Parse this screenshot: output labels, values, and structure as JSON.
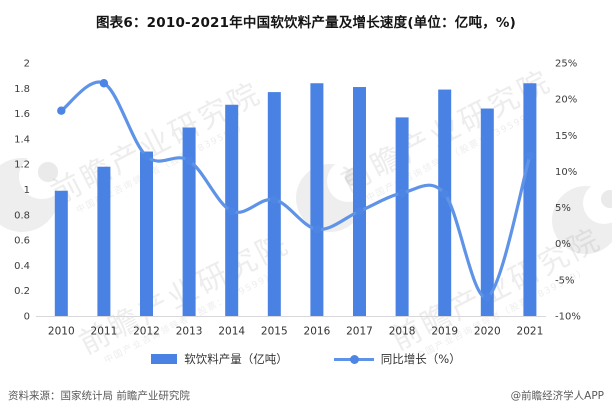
{
  "title": "图表6：2010-2021年中国软饮料产量及增长速度(单位：亿吨，%)",
  "legend": {
    "items": [
      {
        "label": "软饮料产量（亿吨）",
        "type": "bar"
      },
      {
        "label": "同比增长（%）",
        "type": "line"
      }
    ]
  },
  "footer": {
    "source": "资料来源：国家统计局 前瞻产业研究院",
    "credit": "@前瞻经济学人APP"
  },
  "watermark": {
    "brand": "前瞻产业研究院",
    "sub": "中国产业咨询领导者（股票：839599）"
  },
  "colors": {
    "bar": "#4982E2",
    "line": "#5E93E8",
    "marker": "#4C85E4",
    "axis_line": "#D8D8D8",
    "tick_text": "#3C3C3C",
    "xlabel_text": "#333333",
    "title_text": "#141414",
    "footer_text": "#5A5A5A",
    "watermark": "#999999"
  },
  "chart_data": {
    "type": "bar+line",
    "title": "图表6：2010-2021年中国软饮料产量及增长速度(单位：亿吨，%)",
    "categories": [
      "2010",
      "2011",
      "2012",
      "2013",
      "2014",
      "2015",
      "2016",
      "2017",
      "2018",
      "2019",
      "2020",
      "2021"
    ],
    "series": [
      {
        "name": "软饮料产量（亿吨）",
        "type": "bar",
        "axis": "left",
        "values": [
          0.99,
          1.18,
          1.3,
          1.49,
          1.67,
          1.77,
          1.84,
          1.81,
          1.57,
          1.79,
          1.64,
          1.84
        ]
      },
      {
        "name": "同比增长（%）",
        "type": "line",
        "axis": "right",
        "values": [
          18.4,
          22.2,
          12.1,
          11.5,
          4.5,
          6.1,
          2.0,
          4.5,
          7.0,
          6.9,
          -7.4,
          12.2
        ]
      }
    ],
    "left_axis": {
      "min": 0,
      "max": 2,
      "step": 0.2,
      "ticks": [
        "0",
        "0.2",
        "0.4",
        "0.6",
        "0.8",
        "1",
        "1.2",
        "1.4",
        "1.6",
        "1.8",
        "2"
      ]
    },
    "right_axis": {
      "min": -10,
      "max": 25,
      "step": 5,
      "ticks": [
        "-10%",
        "-5%",
        "0%",
        "5%",
        "10%",
        "15%",
        "20%",
        "25%"
      ]
    },
    "grid": false,
    "legend_position": "bottom",
    "smooth_line": true
  }
}
